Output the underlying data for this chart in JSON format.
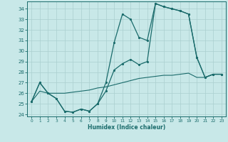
{
  "xlabel": "Humidex (Indice chaleur)",
  "xlim_min": -0.5,
  "xlim_max": 23.5,
  "ylim_min": 23.8,
  "ylim_max": 34.7,
  "xticks": [
    0,
    1,
    2,
    3,
    4,
    5,
    6,
    7,
    8,
    9,
    10,
    11,
    12,
    13,
    14,
    15,
    16,
    17,
    18,
    19,
    20,
    21,
    22,
    23
  ],
  "yticks": [
    24,
    25,
    26,
    27,
    28,
    29,
    30,
    31,
    32,
    33,
    34
  ],
  "bg_color": "#c8e8e8",
  "line_color": "#1a6b6b",
  "grid_color": "#aacfcf",
  "line1_x": [
    0,
    1,
    2,
    3,
    4,
    5,
    6,
    7,
    8,
    9,
    10,
    11,
    12,
    13,
    14,
    15,
    16,
    17,
    18,
    19,
    20,
    21,
    22,
    23
  ],
  "line1_y": [
    25.2,
    27.0,
    26.0,
    25.5,
    24.3,
    24.2,
    24.5,
    24.3,
    25.0,
    27.0,
    30.8,
    33.5,
    33.0,
    31.3,
    31.0,
    34.5,
    34.2,
    34.0,
    33.8,
    33.5,
    29.4,
    27.5,
    27.8,
    27.8
  ],
  "line2_x": [
    0,
    1,
    2,
    3,
    4,
    5,
    6,
    7,
    8,
    9,
    10,
    11,
    12,
    13,
    14,
    15,
    16,
    17,
    18,
    19,
    20,
    21,
    22,
    23
  ],
  "line2_y": [
    25.2,
    27.0,
    26.0,
    25.5,
    24.3,
    24.2,
    24.5,
    24.3,
    25.0,
    26.2,
    28.2,
    28.8,
    29.2,
    28.7,
    29.0,
    34.5,
    34.2,
    34.0,
    33.8,
    33.5,
    29.4,
    27.5,
    27.8,
    27.8
  ],
  "line3_x": [
    0,
    1,
    2,
    3,
    4,
    5,
    6,
    7,
    8,
    9,
    10,
    11,
    12,
    13,
    14,
    15,
    16,
    17,
    18,
    19,
    20,
    21,
    22,
    23
  ],
  "line3_y": [
    25.2,
    26.2,
    26.0,
    26.0,
    26.0,
    26.1,
    26.2,
    26.3,
    26.5,
    26.6,
    26.8,
    27.0,
    27.2,
    27.4,
    27.5,
    27.6,
    27.7,
    27.7,
    27.8,
    27.9,
    27.5,
    27.5,
    27.8,
    27.8
  ]
}
